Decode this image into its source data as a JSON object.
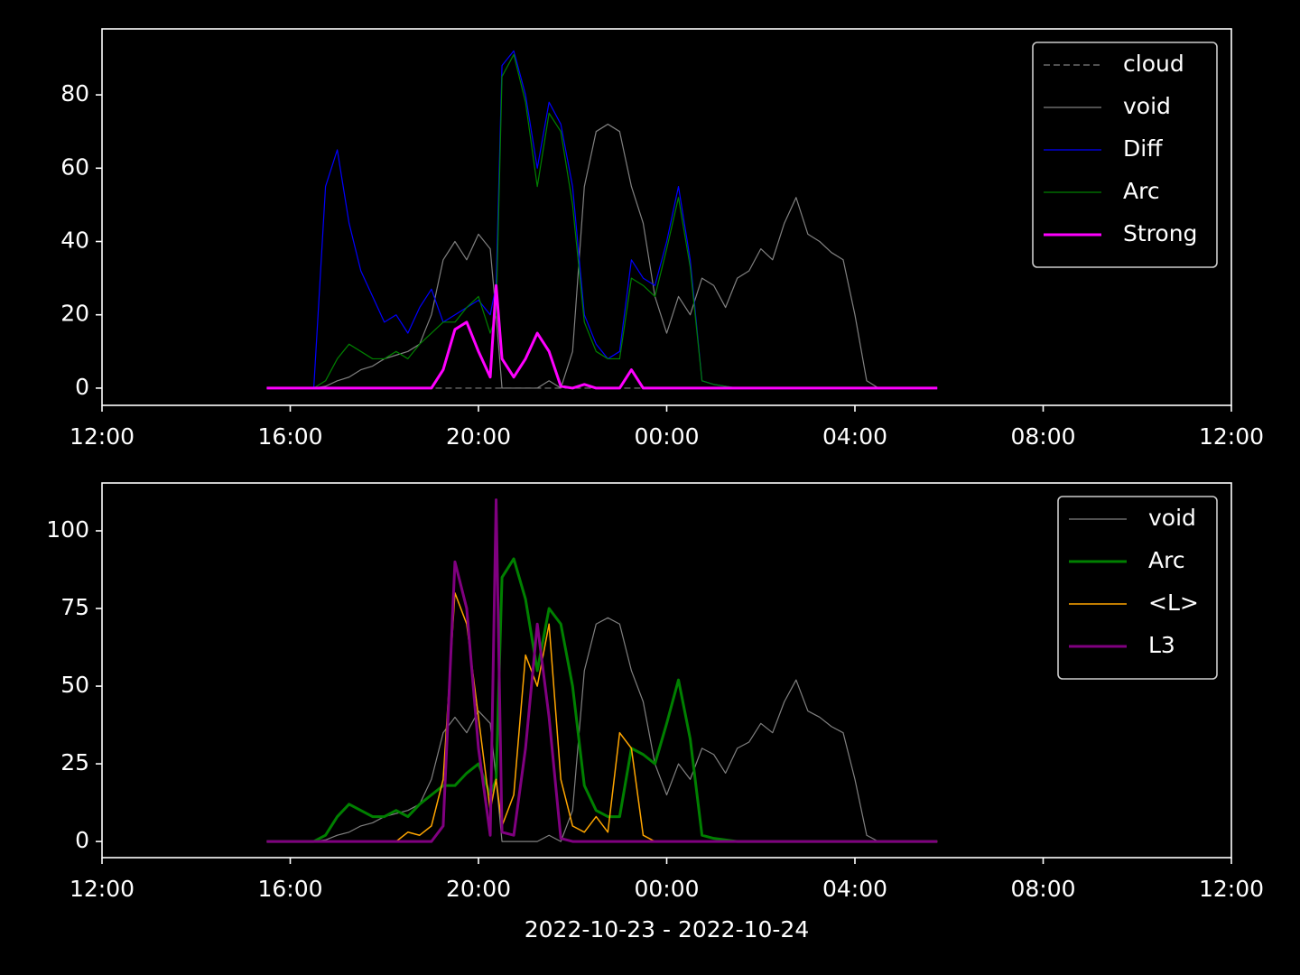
{
  "chart_data": [
    {
      "type": "line",
      "x": [
        15.5,
        15.75,
        16,
        16.25,
        16.5,
        16.75,
        17,
        17.25,
        17.5,
        17.75,
        18,
        18.25,
        18.5,
        18.75,
        19,
        19.25,
        19.5,
        19.75,
        20,
        20.25,
        20.375,
        20.5,
        20.75,
        21,
        21.25,
        21.5,
        21.75,
        22,
        22.25,
        22.5,
        22.75,
        23,
        23.25,
        23.5,
        23.75,
        24,
        24.25,
        24.5,
        24.75,
        25,
        25.25,
        25.5,
        25.75,
        26,
        26.25,
        26.5,
        26.75,
        27,
        27.25,
        27.5,
        27.75,
        28,
        28.25,
        28.5,
        28.75,
        29,
        29.25,
        29.5,
        29.75
      ],
      "xlim": [
        12,
        36
      ],
      "xticks": [
        {
          "value": 12,
          "label": "12:00"
        },
        {
          "value": 16,
          "label": "16:00"
        },
        {
          "value": 20,
          "label": "20:00"
        },
        {
          "value": 24,
          "label": "00:00"
        },
        {
          "value": 28,
          "label": "04:00"
        },
        {
          "value": 32,
          "label": "08:00"
        },
        {
          "value": 36,
          "label": "12:00"
        }
      ],
      "ylim": [
        -4.7,
        98
      ],
      "yticks": [
        0,
        20,
        40,
        60,
        80
      ],
      "legend": "upper right",
      "series": [
        {
          "name": "cloud",
          "color": "#808080",
          "linewidth": 1.2,
          "linestyle": "dashed",
          "values": [
            0,
            0,
            0,
            0,
            0,
            0,
            0,
            0,
            0,
            0,
            0,
            0,
            0,
            0,
            0,
            0,
            0,
            0,
            0,
            0,
            0,
            0,
            0,
            0,
            0,
            0,
            0,
            0,
            0,
            0,
            0,
            0,
            0,
            0,
            0,
            0,
            0,
            0,
            0,
            0,
            0,
            0,
            0,
            0,
            0,
            0,
            0,
            0,
            0,
            0,
            0,
            0,
            0,
            0,
            0,
            0,
            0,
            0,
            0
          ]
        },
        {
          "name": "void",
          "color": "#808080",
          "linewidth": 1.2,
          "values": [
            0,
            0,
            0,
            0,
            0,
            0.5,
            2,
            3,
            5,
            6,
            8,
            9,
            10,
            12,
            20,
            35,
            40,
            35,
            42,
            38,
            20,
            0,
            0,
            0,
            0,
            2,
            0,
            10,
            55,
            70,
            72,
            70,
            55,
            45,
            25,
            15,
            25,
            20,
            30,
            28,
            22,
            30,
            32,
            38,
            35,
            45,
            52,
            42,
            40,
            37,
            35,
            20,
            2,
            0,
            0,
            0,
            0,
            0,
            0
          ]
        },
        {
          "name": "Diff",
          "color": "#0000ff",
          "linewidth": 1.2,
          "values": [
            0,
            0,
            0,
            0,
            0,
            55,
            65,
            45,
            32,
            25,
            18,
            20,
            15,
            22,
            27,
            18,
            20,
            22,
            24,
            20,
            28,
            88,
            92,
            80,
            60,
            78,
            72,
            55,
            20,
            12,
            8,
            10,
            35,
            30,
            28,
            40,
            55,
            35,
            2,
            1,
            0.5,
            0,
            0,
            0,
            0,
            0,
            0,
            0,
            0,
            0,
            0,
            0,
            0,
            0,
            0,
            0,
            0,
            0,
            0
          ]
        },
        {
          "name": "Arc",
          "color": "#008000",
          "linewidth": 1.2,
          "values": [
            0,
            0,
            0,
            0,
            0,
            2,
            8,
            12,
            10,
            8,
            8,
            10,
            8,
            12,
            15,
            18,
            18,
            22,
            25,
            15,
            20,
            85,
            91,
            78,
            55,
            75,
            70,
            50,
            18,
            10,
            8,
            8,
            30,
            28,
            25,
            38,
            52,
            33,
            2,
            1,
            0.5,
            0,
            0,
            0,
            0,
            0,
            0,
            0,
            0,
            0,
            0,
            0,
            0,
            0,
            0,
            0,
            0,
            0,
            0
          ]
        },
        {
          "name": "Strong",
          "color": "#ff00ff",
          "linewidth": 3,
          "values": [
            0,
            0,
            0,
            0,
            0,
            0,
            0,
            0,
            0,
            0,
            0,
            0,
            0,
            0,
            0,
            5,
            16,
            18,
            10,
            3,
            28,
            8,
            3,
            8,
            15,
            10,
            0.5,
            0,
            1,
            0,
            0,
            0,
            5,
            0,
            0,
            0,
            0,
            0,
            0,
            0,
            0,
            0,
            0,
            0,
            0,
            0,
            0,
            0,
            0,
            0,
            0,
            0,
            0,
            0,
            0,
            0,
            0,
            0,
            0
          ]
        }
      ]
    },
    {
      "type": "line",
      "x": [
        15.5,
        15.75,
        16,
        16.25,
        16.5,
        16.75,
        17,
        17.25,
        17.5,
        17.75,
        18,
        18.25,
        18.5,
        18.75,
        19,
        19.25,
        19.5,
        19.75,
        20,
        20.25,
        20.375,
        20.5,
        20.75,
        21,
        21.25,
        21.5,
        21.75,
        22,
        22.25,
        22.5,
        22.75,
        23,
        23.25,
        23.5,
        23.75,
        24,
        24.25,
        24.5,
        24.75,
        25,
        25.25,
        25.5,
        25.75,
        26,
        26.25,
        26.5,
        26.75,
        27,
        27.25,
        27.5,
        27.75,
        28,
        28.25,
        28.5,
        28.75,
        29,
        29.25,
        29.5,
        29.75
      ],
      "xlim": [
        12,
        36
      ],
      "xticks": [
        {
          "value": 12,
          "label": "12:00"
        },
        {
          "value": 16,
          "label": "16:00"
        },
        {
          "value": 20,
          "label": "20:00"
        },
        {
          "value": 24,
          "label": "00:00"
        },
        {
          "value": 28,
          "label": "04:00"
        },
        {
          "value": 32,
          "label": "08:00"
        },
        {
          "value": 36,
          "label": "12:00"
        }
      ],
      "xlabel": "2022-10-23 - 2022-10-24",
      "ylim": [
        -5.2,
        115.4
      ],
      "yticks": [
        0,
        25,
        50,
        75,
        100
      ],
      "legend": "upper right",
      "series": [
        {
          "name": "void",
          "color": "#808080",
          "linewidth": 1.2,
          "values": [
            0,
            0,
            0,
            0,
            0,
            0.5,
            2,
            3,
            5,
            6,
            8,
            9,
            10,
            12,
            20,
            35,
            40,
            35,
            42,
            38,
            20,
            0,
            0,
            0,
            0,
            2,
            0,
            10,
            55,
            70,
            72,
            70,
            55,
            45,
            25,
            15,
            25,
            20,
            30,
            28,
            22,
            30,
            32,
            38,
            35,
            45,
            52,
            42,
            40,
            37,
            35,
            20,
            2,
            0,
            0,
            0,
            0,
            0,
            0
          ]
        },
        {
          "name": "Arc",
          "color": "#008000",
          "linewidth": 3,
          "values": [
            0,
            0,
            0,
            0,
            0,
            2,
            8,
            12,
            10,
            8,
            8,
            10,
            8,
            12,
            15,
            18,
            18,
            22,
            25,
            15,
            20,
            85,
            91,
            78,
            55,
            75,
            70,
            50,
            18,
            10,
            8,
            8,
            30,
            28,
            25,
            38,
            52,
            33,
            2,
            1,
            0.5,
            0,
            0,
            0,
            0,
            0,
            0,
            0,
            0,
            0,
            0,
            0,
            0,
            0,
            0,
            0,
            0,
            0,
            0
          ]
        },
        {
          "name": "<L>",
          "color": "#ffa500",
          "linewidth": 1.5,
          "values": [
            0,
            0,
            0,
            0,
            0,
            0,
            0,
            0,
            0,
            0,
            0,
            0,
            3,
            2,
            5,
            20,
            80,
            70,
            40,
            10,
            20,
            5,
            15,
            60,
            50,
            70,
            20,
            5,
            3,
            8,
            3,
            35,
            30,
            2,
            0,
            0,
            0,
            0,
            0,
            0,
            0,
            0,
            0,
            0,
            0,
            0,
            0,
            0,
            0,
            0,
            0,
            0,
            0,
            0,
            0,
            0,
            0,
            0,
            0
          ]
        },
        {
          "name": "L3",
          "color": "#800080",
          "linewidth": 3,
          "values": [
            0,
            0,
            0,
            0,
            0,
            0,
            0,
            0,
            0,
            0,
            0,
            0,
            0,
            0,
            0,
            5,
            90,
            75,
            30,
            2,
            110,
            3,
            2,
            30,
            70,
            40,
            1,
            0,
            0,
            0,
            0,
            0,
            0,
            0,
            0,
            0,
            0,
            0,
            0,
            0,
            0,
            0,
            0,
            0,
            0,
            0,
            0,
            0,
            0,
            0,
            0,
            0,
            0,
            0,
            0,
            0,
            0,
            0,
            0
          ]
        }
      ]
    }
  ]
}
